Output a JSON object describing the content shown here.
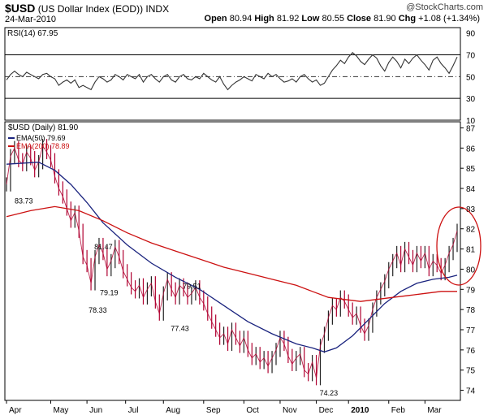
{
  "header": {
    "symbol": "$USD",
    "name": "(US Dollar Index (EOD))",
    "exchange": "INDX",
    "date": "24-Mar-2010",
    "watermark": "@StockCharts.com",
    "open_label": "Open",
    "open": "80.94",
    "high_label": "High",
    "high": "81.92",
    "low_label": "Low",
    "low": "80.55",
    "close_label": "Close",
    "close": "81.90",
    "chg_label": "Chg",
    "chg": "+1.08 (+1.34%)"
  },
  "chart_data": [
    {
      "type": "line",
      "panel": "RSI",
      "legend": "RSI(14) 67.95",
      "ylim": [
        10,
        95
      ],
      "yticks": [
        90,
        70,
        50,
        30,
        10
      ],
      "reference_lines": [
        70,
        50,
        30
      ],
      "series": [
        {
          "name": "RSI(14)",
          "color": "#333333",
          "x": [
            0,
            5,
            10,
            15,
            20,
            25,
            30,
            35,
            40,
            45,
            50,
            55,
            60,
            65,
            70,
            75,
            80,
            85,
            90,
            95,
            100,
            105,
            110,
            115,
            120,
            125,
            130,
            135,
            140,
            145,
            150,
            155,
            160,
            165,
            170,
            175,
            180,
            185,
            190,
            195,
            200,
            205,
            210,
            215,
            220,
            225,
            230,
            235,
            240,
            245,
            250,
            255,
            260,
            265,
            270,
            275,
            280,
            285,
            290,
            295,
            300,
            305,
            310,
            315,
            320,
            325,
            330,
            335,
            340,
            345,
            350,
            355,
            360,
            365,
            370,
            375,
            380,
            385,
            390,
            395,
            400,
            405,
            410,
            415,
            420,
            425,
            430,
            435,
            440,
            445,
            450,
            455,
            460,
            465,
            470,
            475,
            480,
            485,
            490,
            495,
            500,
            505,
            510,
            515,
            520,
            525,
            530,
            535,
            540,
            545,
            550,
            555,
            560
          ],
          "values": [
            47,
            52,
            55,
            52,
            50,
            54,
            52,
            50,
            48,
            52,
            53,
            50,
            48,
            42,
            45,
            47,
            44,
            47,
            40,
            42,
            40,
            38,
            45,
            50,
            48,
            45,
            47,
            52,
            50,
            47,
            52,
            50,
            48,
            52,
            45,
            50,
            52,
            48,
            45,
            50,
            52,
            47,
            45,
            50,
            52,
            48,
            47,
            50,
            48,
            53,
            50,
            47,
            45,
            50,
            43,
            38,
            42,
            45,
            47,
            50,
            48,
            46,
            52,
            50,
            48,
            53,
            50,
            52,
            48,
            45,
            46,
            48,
            45,
            50,
            52,
            48,
            45,
            47,
            42,
            44,
            50,
            56,
            60,
            65,
            62,
            68,
            72,
            69,
            64,
            61,
            66,
            70,
            67,
            60,
            55,
            63,
            68,
            64,
            58,
            66,
            62,
            67,
            70,
            65,
            61,
            56,
            65,
            68,
            62,
            58,
            53,
            60,
            68
          ]
        }
      ]
    },
    {
      "type": "line",
      "panel": "Price",
      "legend_price": "$USD (Daily) 81.90",
      "legend_ema50": "EMA(50) 79.69",
      "legend_ema200": "EMA(200) 78.89",
      "ylim": [
        73.5,
        87.3
      ],
      "yticks": [
        87,
        86,
        85,
        84,
        83,
        82,
        81,
        80,
        79,
        78,
        77,
        76,
        75,
        74
      ],
      "xticks": [
        "Apr",
        "May",
        "Jun",
        "Jul",
        "Aug",
        "Sep",
        "Oct",
        "Nov",
        "Dec",
        "2010",
        "Feb",
        "Mar"
      ],
      "xtick_positions": [
        0,
        55,
        100,
        148,
        195,
        245,
        295,
        340,
        385,
        425,
        475,
        520
      ],
      "annotations": [
        {
          "text": "83.73",
          "x": 6,
          "y": 83.73
        },
        {
          "text": "81.47",
          "x": 105,
          "y": 81.47
        },
        {
          "text": "79.19",
          "x": 112,
          "y": 79.19
        },
        {
          "text": "78.33",
          "x": 98,
          "y": 78.33
        },
        {
          "text": "79.51",
          "x": 215,
          "y": 79.51
        },
        {
          "text": "77.43",
          "x": 200,
          "y": 77.43
        },
        {
          "text": "74.23",
          "x": 385,
          "y": 74.23
        }
      ],
      "series": [
        {
          "name": "$USD (Daily)",
          "color": "#b00030",
          "x": [
            0,
            5,
            10,
            15,
            20,
            25,
            30,
            35,
            40,
            45,
            50,
            55,
            60,
            65,
            70,
            75,
            80,
            85,
            90,
            95,
            100,
            105,
            110,
            115,
            120,
            125,
            130,
            135,
            140,
            145,
            150,
            155,
            160,
            165,
            170,
            175,
            180,
            185,
            190,
            195,
            200,
            205,
            210,
            215,
            220,
            225,
            230,
            235,
            240,
            245,
            250,
            255,
            260,
            265,
            270,
            275,
            280,
            285,
            290,
            295,
            300,
            305,
            310,
            315,
            320,
            325,
            330,
            335,
            340,
            345,
            350,
            355,
            360,
            365,
            370,
            375,
            380,
            385,
            390,
            395,
            400,
            405,
            410,
            415,
            420,
            425,
            430,
            435,
            440,
            445,
            450,
            455,
            460,
            465,
            470,
            475,
            480,
            485,
            490,
            495,
            500,
            505,
            510,
            515,
            520,
            525,
            530,
            535,
            540,
            545,
            550,
            555,
            560
          ],
          "values": [
            84.2,
            85.6,
            86.0,
            85.4,
            85.2,
            85.8,
            85.5,
            84.9,
            85.3,
            86.1,
            85.8,
            85.4,
            84.6,
            84.0,
            83.6,
            83.0,
            82.4,
            82.8,
            81.9,
            80.6,
            80.2,
            79.3,
            80.6,
            81.2,
            80.8,
            80.0,
            80.4,
            81.1,
            80.6,
            79.9,
            79.5,
            79.1,
            78.9,
            79.2,
            78.6,
            79.0,
            79.3,
            78.4,
            77.8,
            78.8,
            79.5,
            79.0,
            78.6,
            79.2,
            79.0,
            78.6,
            78.8,
            79.1,
            78.6,
            78.3,
            77.8,
            77.4,
            77.0,
            76.6,
            76.8,
            76.3,
            77.0,
            76.6,
            76.2,
            76.6,
            76.0,
            75.6,
            75.8,
            75.4,
            75.6,
            75.2,
            75.6,
            76.0,
            76.6,
            76.3,
            75.7,
            75.3,
            75.6,
            75.8,
            75.0,
            74.8,
            75.4,
            74.6,
            76.2,
            76.8,
            77.6,
            78.2,
            78.0,
            78.6,
            78.4,
            78.0,
            77.6,
            77.8,
            77.2,
            76.8,
            77.2,
            78.0,
            78.6,
            79.0,
            79.4,
            80.0,
            80.4,
            80.8,
            80.2,
            81.0,
            80.6,
            80.2,
            80.8,
            80.4,
            80.8,
            80.0,
            80.4,
            80.2,
            79.8,
            80.2,
            80.8,
            81.2,
            81.9
          ]
        },
        {
          "name": "EMA(50)",
          "color": "#1a237e",
          "x": [
            0,
            40,
            60,
            80,
            100,
            120,
            150,
            180,
            210,
            240,
            270,
            300,
            330,
            360,
            380,
            395,
            410,
            430,
            450,
            470,
            490,
            510,
            530,
            550,
            560
          ],
          "values": [
            85.2,
            85.3,
            84.9,
            84.2,
            83.3,
            82.3,
            81.2,
            80.3,
            79.6,
            79.0,
            78.2,
            77.4,
            76.8,
            76.3,
            76.1,
            75.9,
            76.1,
            76.7,
            77.5,
            78.3,
            78.9,
            79.3,
            79.5,
            79.6,
            79.7
          ]
        },
        {
          "name": "EMA(200)",
          "color": "#cc1111",
          "x": [
            0,
            30,
            60,
            90,
            120,
            150,
            180,
            210,
            240,
            270,
            300,
            330,
            360,
            380,
            400,
            420,
            440,
            460,
            480,
            500,
            520,
            540,
            560
          ],
          "values": [
            82.6,
            82.9,
            83.1,
            82.9,
            82.4,
            81.8,
            81.3,
            80.9,
            80.5,
            80.1,
            79.8,
            79.5,
            79.2,
            78.9,
            78.6,
            78.5,
            78.4,
            78.5,
            78.6,
            78.7,
            78.8,
            78.9,
            78.9
          ]
        }
      ]
    }
  ]
}
